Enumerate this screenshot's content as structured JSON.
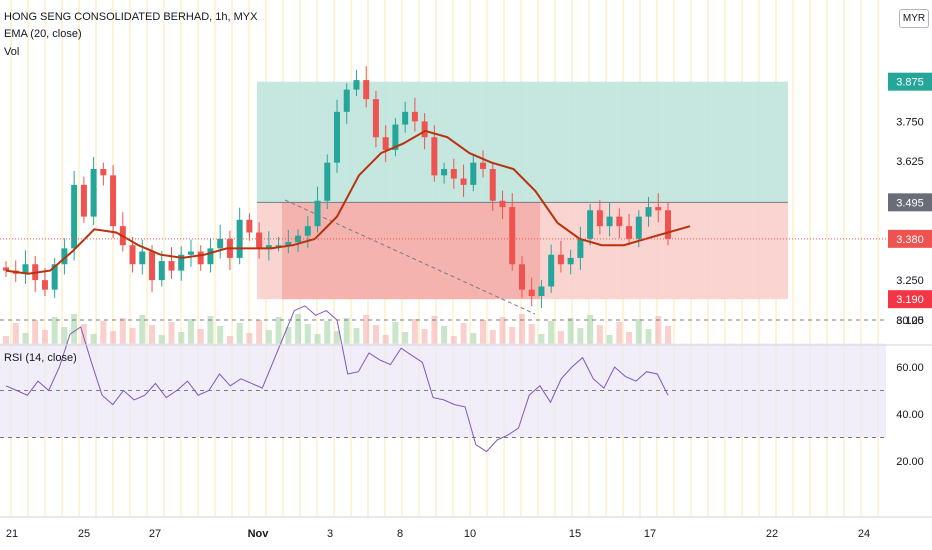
{
  "header": {
    "title": "HONG SENG CONSOLIDATED BERHAD, 1h, MYX",
    "ema_label": "EMA (20, close)",
    "vol_label": "Vol",
    "currency": "MYR"
  },
  "rsi": {
    "label": "RSI (14, close)",
    "ticks": [
      "80.00",
      "60.00",
      "40.00",
      "20.00"
    ]
  },
  "price_axis": {
    "ticks": [
      "3.750",
      "3.625",
      "3.250",
      "3.125"
    ],
    "badges": [
      {
        "label": "3.875",
        "value": 3.875,
        "color": "#26a69a"
      },
      {
        "label": "3.495",
        "value": 3.495,
        "color": "#6a6d78"
      },
      {
        "label": "3.380",
        "value": 3.38,
        "color": "#ef5350"
      },
      {
        "label": "3.190",
        "value": 3.19,
        "color": "#f23645"
      }
    ]
  },
  "time_axis": {
    "labels": [
      "21",
      "25",
      "27",
      "Nov",
      "3",
      "8",
      "10",
      "15",
      "17",
      "22",
      "24"
    ]
  },
  "colors": {
    "up": "#26a69a",
    "down": "#ef5350",
    "ema": "#b7330f",
    "rsi": "#7e57c2",
    "profit_zone": "#bfe4dd",
    "loss_zone": "#f8cfcc"
  },
  "position": {
    "entry": 3.495,
    "target": 3.875,
    "stop": 3.19
  },
  "chart_data": {
    "type": "candlestick",
    "symbol": "HONG SENG CONSOLIDATED BERHAD",
    "interval": "1h",
    "exchange": "MYX",
    "last_price": 3.38,
    "close_path": [
      3.28,
      3.27,
      3.3,
      3.25,
      3.22,
      3.3,
      3.35,
      3.55,
      3.45,
      3.6,
      3.58,
      3.42,
      3.36,
      3.3,
      3.34,
      3.25,
      3.31,
      3.28,
      3.33,
      3.34,
      3.3,
      3.35,
      3.38,
      3.32,
      3.44,
      3.4,
      3.35,
      3.36,
      3.36,
      3.37,
      3.39,
      3.42,
      3.5,
      3.62,
      3.78,
      3.85,
      3.88,
      3.82,
      3.7,
      3.66,
      3.74,
      3.78,
      3.75,
      3.7,
      3.58,
      3.6,
      3.57,
      3.55,
      3.62,
      3.6,
      3.5,
      3.48,
      3.3,
      3.22,
      3.2,
      3.23,
      3.33,
      3.3,
      3.32,
      3.38,
      3.47,
      3.42,
      3.45,
      3.42,
      3.38,
      3.45,
      3.48,
      3.47,
      3.38
    ],
    "ema20_path": [
      3.28,
      3.27,
      3.28,
      3.34,
      3.41,
      3.4,
      3.36,
      3.33,
      3.32,
      3.33,
      3.35,
      3.35,
      3.35,
      3.36,
      3.38,
      3.45,
      3.58,
      3.65,
      3.68,
      3.72,
      3.7,
      3.65,
      3.62,
      3.6,
      3.53,
      3.43,
      3.38,
      3.36,
      3.36,
      3.38,
      3.4,
      3.42
    ],
    "rsi_path": [
      52,
      50,
      48,
      54,
      50,
      60,
      74,
      77,
      62,
      48,
      44,
      50,
      46,
      48,
      53,
      47,
      50,
      54,
      48,
      50,
      57,
      52,
      55,
      53,
      51,
      62,
      73,
      84,
      86,
      82,
      84,
      80,
      57,
      58,
      66,
      63,
      61,
      68,
      65,
      62,
      47,
      46,
      44,
      43,
      27,
      24,
      29,
      31,
      34,
      48,
      52,
      45,
      55,
      60,
      64,
      55,
      51,
      60,
      56,
      54,
      58,
      57,
      48
    ],
    "rsi_levels": [
      70,
      30
    ],
    "volume_visible": true
  }
}
